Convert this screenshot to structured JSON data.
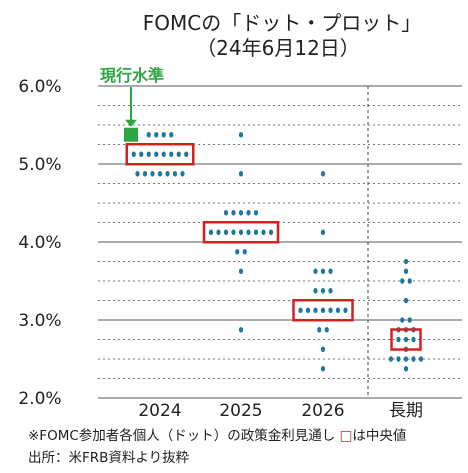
{
  "title": {
    "line1": "FOMCの「ドット・プロット」",
    "line2": "（24年6月12日）"
  },
  "current_label": "現行水準",
  "notes": {
    "line1_a": "※FOMC参加者各個人（ドット）の政策金利見通し",
    "line1_box": "□",
    "line1_b": "は中央値",
    "line2": "出所：米FRB資料より抜粋"
  },
  "colors": {
    "dot": "#1f77a0",
    "median_box": "#d42020",
    "current": "#2ea543",
    "grid_major": "#7a7a7a",
    "grid_minor": "#777777"
  },
  "chart_data": {
    "type": "scatter",
    "categories": [
      "2024",
      "2025",
      "2026",
      "長期"
    ],
    "ylim": [
      2.0,
      6.0
    ],
    "yticks": [
      "2.0%",
      "3.0%",
      "4.0%",
      "5.0%",
      "6.0%"
    ],
    "current_level": 5.375,
    "dots": [
      {
        "category": "2024",
        "rows": [
          {
            "rate": 5.375,
            "count": 4
          },
          {
            "rate": 5.125,
            "count": 8
          },
          {
            "rate": 4.875,
            "count": 7
          }
        ]
      },
      {
        "category": "2025",
        "rows": [
          {
            "rate": 5.375,
            "count": 1
          },
          {
            "rate": 4.875,
            "count": 1
          },
          {
            "rate": 4.375,
            "count": 5
          },
          {
            "rate": 4.125,
            "count": 9
          },
          {
            "rate": 3.875,
            "count": 2
          },
          {
            "rate": 3.625,
            "count": 1
          },
          {
            "rate": 2.875,
            "count": 1
          }
        ]
      },
      {
        "category": "2026",
        "rows": [
          {
            "rate": 4.875,
            "count": 1
          },
          {
            "rate": 4.125,
            "count": 1
          },
          {
            "rate": 3.625,
            "count": 3
          },
          {
            "rate": 3.375,
            "count": 3
          },
          {
            "rate": 3.125,
            "count": 7
          },
          {
            "rate": 2.875,
            "count": 2
          },
          {
            "rate": 2.625,
            "count": 1
          },
          {
            "rate": 2.375,
            "count": 1
          }
        ]
      },
      {
        "category": "長期",
        "rows": [
          {
            "rate": 3.75,
            "count": 1
          },
          {
            "rate": 3.625,
            "count": 1
          },
          {
            "rate": 3.5,
            "count": 2
          },
          {
            "rate": 3.25,
            "count": 1
          },
          {
            "rate": 3.0,
            "count": 2
          },
          {
            "rate": 2.875,
            "count": 3
          },
          {
            "rate": 2.75,
            "count": 3
          },
          {
            "rate": 2.625,
            "count": 1
          },
          {
            "rate": 2.5,
            "count": 5
          },
          {
            "rate": 2.375,
            "count": 1
          }
        ]
      }
    ],
    "medians": [
      {
        "category": "2024",
        "rate": 5.125
      },
      {
        "category": "2025",
        "rate": 4.125
      },
      {
        "category": "2026",
        "rate": 3.125
      },
      {
        "category": "長期",
        "rate": 2.75
      }
    ]
  }
}
